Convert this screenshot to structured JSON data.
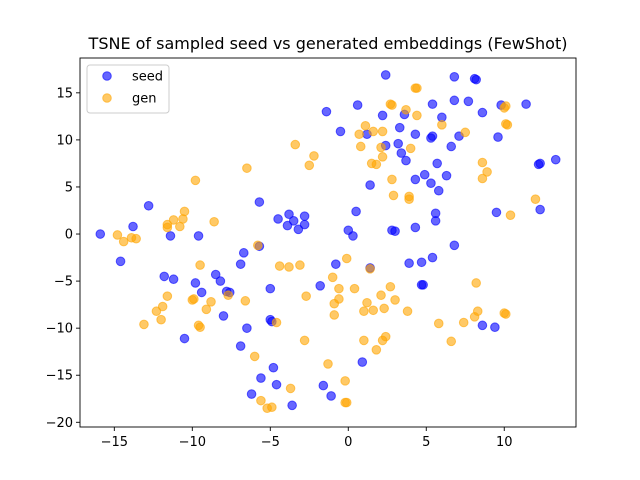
{
  "chart_data": {
    "type": "scatter",
    "title": "TSNE of sampled seed vs generated embeddings (FewShot)",
    "xlabel": "",
    "ylabel": "",
    "xlim": [
      -17.2,
      14.6
    ],
    "ylim": [
      -20.5,
      18.7
    ],
    "xticks": [
      -15,
      -10,
      -5,
      0,
      5,
      10
    ],
    "yticks": [
      -20,
      -15,
      -10,
      -5,
      0,
      5,
      10,
      15
    ],
    "grid": false,
    "legend": {
      "placement": "top-left"
    },
    "series": [
      {
        "name": "seed",
        "color": "#0000ff",
        "points": [
          [
            2.4,
            16.9
          ],
          [
            8.1,
            16.5
          ],
          [
            8.2,
            16.4
          ],
          [
            6.8,
            16.7
          ],
          [
            -1.4,
            13.0
          ],
          [
            0.6,
            13.7
          ],
          [
            5.4,
            13.8
          ],
          [
            6.8,
            14.2
          ],
          [
            7.7,
            14.1
          ],
          [
            9.8,
            13.7
          ],
          [
            11.4,
            13.8
          ],
          [
            2.2,
            12.6
          ],
          [
            3.6,
            12.7
          ],
          [
            6.0,
            12.4
          ],
          [
            8.6,
            12.9
          ],
          [
            -0.5,
            10.9
          ],
          [
            1.2,
            10.6
          ],
          [
            3.3,
            11.3
          ],
          [
            4.3,
            10.6
          ],
          [
            5.3,
            10.2
          ],
          [
            5.4,
            10.4
          ],
          [
            7.1,
            10.4
          ],
          [
            9.6,
            10.3
          ],
          [
            2.4,
            9.4
          ],
          [
            3.2,
            9.6
          ],
          [
            3.4,
            8.6
          ],
          [
            3.7,
            7.8
          ],
          [
            5.7,
            7.5
          ],
          [
            6.6,
            9.3
          ],
          [
            12.2,
            7.4
          ],
          [
            12.3,
            7.5
          ],
          [
            13.3,
            7.9
          ],
          [
            1.4,
            5.2
          ],
          [
            4.3,
            5.8
          ],
          [
            4.9,
            6.3
          ],
          [
            5.3,
            5.4
          ],
          [
            5.8,
            4.6
          ],
          [
            6.3,
            6.2
          ],
          [
            -5.7,
            3.4
          ],
          [
            0.5,
            2.4
          ],
          [
            5.6,
            2.2
          ],
          [
            9.5,
            2.3
          ],
          [
            12.3,
            2.6
          ],
          [
            -12.8,
            3.0
          ],
          [
            -4.5,
            1.6
          ],
          [
            -3.8,
            2.1
          ],
          [
            -3.5,
            1.4
          ],
          [
            -2.8,
            1.9
          ],
          [
            -3.9,
            0.9
          ],
          [
            -3.2,
            0.5
          ],
          [
            -2.8,
            1.0
          ],
          [
            5.6,
            1.4
          ],
          [
            4.3,
            0.7
          ],
          [
            -15.9,
            0.0
          ],
          [
            -13.8,
            0.8
          ],
          [
            -11.4,
            -0.2
          ],
          [
            -9.6,
            -0.2
          ],
          [
            0.0,
            0.4
          ],
          [
            0.3,
            -0.2
          ],
          [
            2.8,
            0.4
          ],
          [
            3.0,
            0.3
          ],
          [
            -6.7,
            -2.0
          ],
          [
            -5.7,
            -1.3
          ],
          [
            -14.6,
            -2.9
          ],
          [
            -11.8,
            -4.5
          ],
          [
            -11.2,
            -4.8
          ],
          [
            -9.8,
            -5.2
          ],
          [
            -8.5,
            -4.3
          ],
          [
            -8.2,
            -5.0
          ],
          [
            -6.9,
            -3.2
          ],
          [
            -9.4,
            -6.2
          ],
          [
            -7.8,
            -6.1
          ],
          [
            -7.6,
            -6.2
          ],
          [
            -5.0,
            -5.8
          ],
          [
            -1.8,
            -5.5
          ],
          [
            -0.8,
            -3.2
          ],
          [
            1.4,
            -3.6
          ],
          [
            3.9,
            -3.1
          ],
          [
            4.7,
            -3.0
          ],
          [
            5.4,
            -2.5
          ],
          [
            6.8,
            -1.2
          ],
          [
            4.8,
            -5.4
          ],
          [
            4.7,
            -5.4
          ],
          [
            -10.5,
            -11.1
          ],
          [
            -8.0,
            -8.7
          ],
          [
            -6.5,
            -10.0
          ],
          [
            -6.9,
            -11.9
          ],
          [
            -5.0,
            -9.1
          ],
          [
            -4.9,
            -9.3
          ],
          [
            8.6,
            -9.7
          ],
          [
            9.4,
            -9.9
          ],
          [
            0.9,
            -13.6
          ],
          [
            -4.8,
            -14.2
          ],
          [
            -5.6,
            -15.3
          ],
          [
            -4.6,
            -16.0
          ],
          [
            -6.2,
            -17.0
          ],
          [
            -3.6,
            -18.2
          ],
          [
            -1.6,
            -16.1
          ],
          [
            -1.1,
            -17.2
          ]
        ]
      },
      {
        "name": "gen",
        "color": "#ffa500",
        "points": [
          [
            4.3,
            15.5
          ],
          [
            4.4,
            15.5
          ],
          [
            2.7,
            13.8
          ],
          [
            2.8,
            13.7
          ],
          [
            3.7,
            13.2
          ],
          [
            4.4,
            12.6
          ],
          [
            10.0,
            13.4
          ],
          [
            10.1,
            13.6
          ],
          [
            1.1,
            11.5
          ],
          [
            1.6,
            10.9
          ],
          [
            2.2,
            10.9
          ],
          [
            0.7,
            10.6
          ],
          [
            6.0,
            11.6
          ],
          [
            7.5,
            10.8
          ],
          [
            10.1,
            11.7
          ],
          [
            10.2,
            11.6
          ],
          [
            -3.4,
            9.5
          ],
          [
            0.8,
            9.3
          ],
          [
            2.1,
            9.2
          ],
          [
            4.0,
            9.1
          ],
          [
            -2.2,
            8.3
          ],
          [
            2.2,
            8.2
          ],
          [
            8.6,
            7.6
          ],
          [
            -6.5,
            7.0
          ],
          [
            -2.5,
            7.3
          ],
          [
            1.5,
            7.5
          ],
          [
            1.8,
            7.4
          ],
          [
            8.9,
            6.6
          ],
          [
            8.6,
            5.9
          ],
          [
            -9.8,
            5.7
          ],
          [
            2.8,
            5.8
          ],
          [
            2.9,
            4.1
          ],
          [
            3.9,
            4.0
          ],
          [
            3.9,
            3.7
          ],
          [
            12.0,
            3.7
          ],
          [
            10.4,
            2.0
          ],
          [
            -10.5,
            2.4
          ],
          [
            -11.2,
            1.5
          ],
          [
            -10.6,
            1.6
          ],
          [
            -11.6,
            1.0
          ],
          [
            -11.6,
            0.7
          ],
          [
            -14.8,
            -0.1
          ],
          [
            -14.4,
            -0.8
          ],
          [
            -13.9,
            -0.4
          ],
          [
            -13.6,
            -0.5
          ],
          [
            -10.8,
            0.8
          ],
          [
            -8.6,
            1.3
          ],
          [
            -5.8,
            -1.2
          ],
          [
            -9.5,
            -3.3
          ],
          [
            -4.4,
            -3.4
          ],
          [
            -3.8,
            -3.5
          ],
          [
            -3.1,
            -3.3
          ],
          [
            -1.0,
            -4.6
          ],
          [
            -0.1,
            -2.6
          ],
          [
            1.4,
            -3.7
          ],
          [
            -11.6,
            -6.6
          ],
          [
            -11.9,
            -7.7
          ],
          [
            -12.3,
            -8.2
          ],
          [
            -9.9,
            -6.9
          ],
          [
            -10.0,
            -7.0
          ],
          [
            -8.8,
            -7.2
          ],
          [
            -9.1,
            -8.0
          ],
          [
            -7.7,
            -6.5
          ],
          [
            -6.6,
            -7.1
          ],
          [
            -0.6,
            -5.8
          ],
          [
            -0.6,
            -6.9
          ],
          [
            0.4,
            -5.8
          ],
          [
            1.2,
            -7.3
          ],
          [
            2.1,
            -6.5
          ],
          [
            2.7,
            -5.6
          ],
          [
            3.0,
            -7.0
          ],
          [
            1.6,
            -8.1
          ],
          [
            1.0,
            -8.2
          ],
          [
            2.3,
            -7.9
          ],
          [
            3.8,
            -8.2
          ],
          [
            -0.9,
            -7.4
          ],
          [
            -2.7,
            -6.6
          ],
          [
            8.2,
            -5.2
          ],
          [
            10.0,
            -8.4
          ],
          [
            10.1,
            -8.5
          ],
          [
            8.3,
            -8.2
          ],
          [
            8.1,
            -8.8
          ],
          [
            -12.0,
            -9.1
          ],
          [
            -13.1,
            -9.6
          ],
          [
            -9.6,
            -9.7
          ],
          [
            -9.5,
            -9.9
          ],
          [
            -4.6,
            -9.4
          ],
          [
            -0.9,
            -8.6
          ],
          [
            5.8,
            -9.5
          ],
          [
            7.4,
            -9.4
          ],
          [
            1.0,
            -11.3
          ],
          [
            2.4,
            -10.9
          ],
          [
            2.2,
            -11.3
          ],
          [
            6.6,
            -11.4
          ],
          [
            -2.8,
            -11.3
          ],
          [
            -6.0,
            -13.0
          ],
          [
            1.8,
            -12.3
          ],
          [
            -1.3,
            -13.8
          ],
          [
            -3.7,
            -16.4
          ],
          [
            -5.6,
            -17.7
          ],
          [
            -5.2,
            -18.5
          ],
          [
            -4.9,
            -18.4
          ],
          [
            -0.2,
            -15.6
          ],
          [
            -0.2,
            -17.9
          ],
          [
            -0.1,
            -17.9
          ]
        ]
      }
    ]
  }
}
